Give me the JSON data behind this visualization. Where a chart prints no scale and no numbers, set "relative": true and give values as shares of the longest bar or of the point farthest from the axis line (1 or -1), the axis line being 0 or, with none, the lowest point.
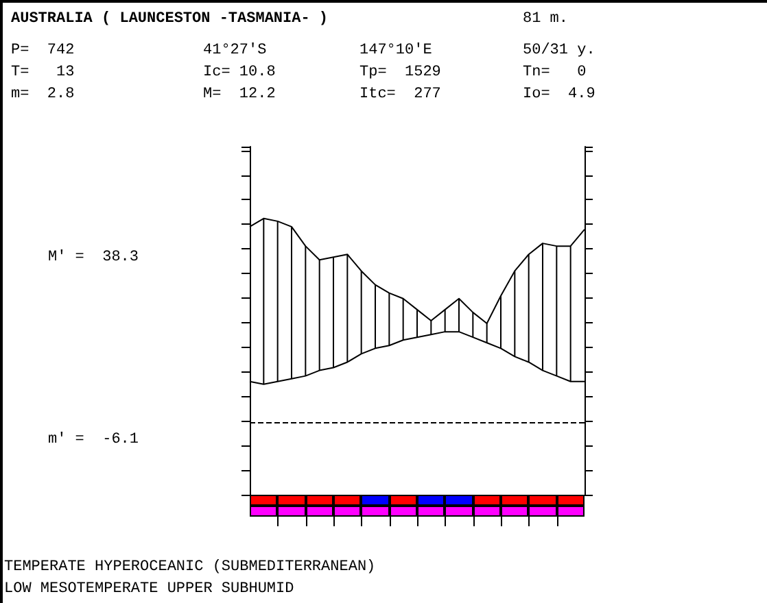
{
  "chart_data": {
    "type": "line",
    "title": "AUSTRALIA ( LAUNCESTON -TASMANIA- )",
    "relative": true,
    "marker": "none",
    "line_style": "solid",
    "grid": false,
    "categories": [
      null,
      null,
      null,
      null,
      null,
      null,
      null,
      null,
      null,
      null,
      null,
      null,
      null,
      null,
      null,
      null,
      null,
      null,
      null,
      null,
      null,
      null,
      null,
      null,
      null
    ],
    "series": [
      {
        "color": "#000000",
        "values": [
          0.97,
          1,
          0.99,
          0.97,
          0.9,
          0.85,
          0.86,
          0.87,
          0.81,
          0.76,
          0.73,
          0.71,
          0.67,
          0.63,
          0.67,
          0.71,
          0.66,
          0.62,
          0.72,
          0.81,
          0.87,
          0.91,
          0.9,
          0.9,
          0.96
        ]
      },
      {
        "color": "#000000",
        "values": [
          0.41,
          0.4,
          0.41,
          0.42,
          0.43,
          0.45,
          0.46,
          0.48,
          0.51,
          0.53,
          0.54,
          0.56,
          0.57,
          0.58,
          0.59,
          0.59,
          0.57,
          0.55,
          0.53,
          0.5,
          0.48,
          0.45,
          0.43,
          0.41,
          0.41
        ]
      }
    ],
    "ref_lines": [
      {
        "axis": "y",
        "value": 0.26,
        "line_style": "dashed",
        "color": "#000000"
      }
    ],
    "annotations": [
      "81 m.",
      "P=  742",
      "41°27'S",
      "147°10'E",
      "50/31 y.",
      "T=   13",
      "Ic= 10.8",
      "Tp=  1529",
      "Tn=   0",
      "m=  2.8",
      "M=  12.2",
      "Itc=  277",
      "Io=  4.9",
      "M' =  38.3",
      "m' =  -6.1",
      "TEMPERATE HYPEROCEANIC (SUBMEDITERRANEAN)",
      "LOW MESOTEMPERATE UPPER SUBHUMID"
    ]
  }
}
